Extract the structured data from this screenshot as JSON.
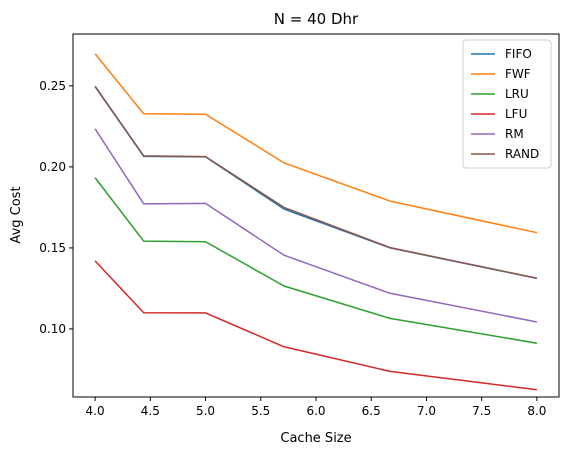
{
  "chart_data": {
    "type": "line",
    "title": "N = 40 Dhr",
    "xlabel": "Cache Size",
    "ylabel": "Avg Cost",
    "xlim": [
      3.8,
      8.2
    ],
    "ylim": [
      0.058,
      0.282
    ],
    "xticks": [
      4.0,
      4.5,
      5.0,
      5.5,
      6.0,
      6.5,
      7.0,
      7.5,
      8.0
    ],
    "yticks": [
      0.1,
      0.15,
      0.2,
      0.25
    ],
    "grid": false,
    "legend_position": "top-right",
    "x": [
      4.0,
      4.44,
      5.0,
      5.71,
      6.67,
      8.0
    ],
    "series": [
      {
        "name": "FIFO",
        "color": "#1f77b4",
        "values": [
          0.2495,
          0.2065,
          0.2062,
          0.174,
          0.15,
          0.1312
        ]
      },
      {
        "name": "FWF",
        "color": "#ff7f0e",
        "values": [
          0.2698,
          0.2328,
          0.2325,
          0.2025,
          0.1789,
          0.1594
        ]
      },
      {
        "name": "LRU",
        "color": "#2ca02c",
        "values": [
          0.1933,
          0.1542,
          0.1538,
          0.1265,
          0.1065,
          0.0912
        ]
      },
      {
        "name": "LFU",
        "color": "#d62728",
        "values": [
          0.142,
          0.11,
          0.1099,
          0.089,
          0.0738,
          0.0625
        ]
      },
      {
        "name": "RM",
        "color": "#9467bd",
        "values": [
          0.2235,
          0.1772,
          0.1775,
          0.1455,
          0.122,
          0.1043
        ]
      },
      {
        "name": "RAND",
        "color": "#8c564b",
        "values": [
          0.2498,
          0.2068,
          0.2063,
          0.175,
          0.1502,
          0.1313
        ]
      }
    ]
  }
}
